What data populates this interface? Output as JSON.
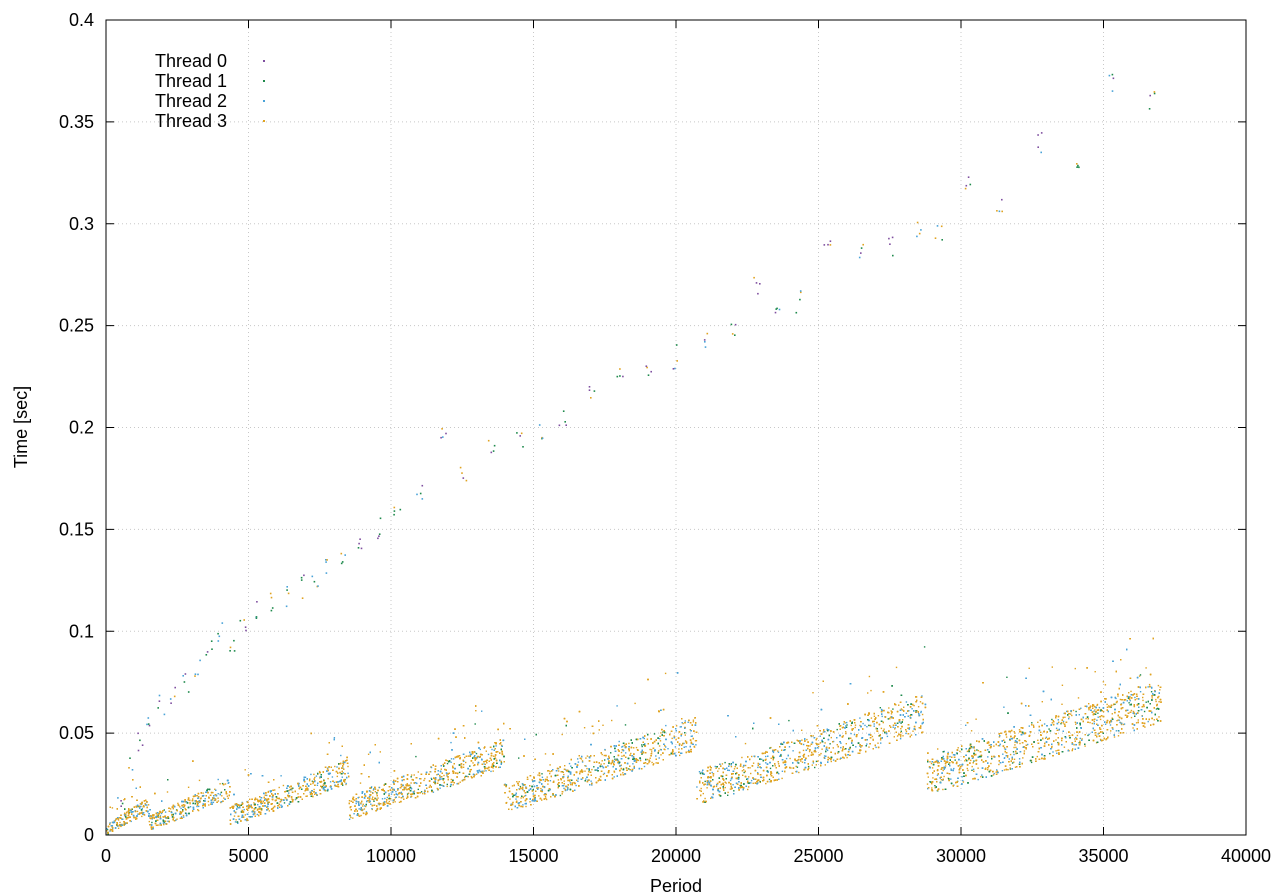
{
  "chart_data": {
    "type": "scatter",
    "title": "",
    "xlabel": "Period",
    "ylabel": "Time [sec]",
    "xlim": [
      0,
      40000
    ],
    "ylim": [
      0,
      0.4
    ],
    "xticks": [
      0,
      5000,
      10000,
      15000,
      20000,
      25000,
      30000,
      35000,
      40000
    ],
    "yticks": [
      0,
      0.05,
      0.1,
      0.15,
      0.2,
      0.25,
      0.3,
      0.35,
      0.4
    ],
    "xtick_labels": [
      "0",
      "5000",
      "10000",
      "15000",
      "20000",
      "25000",
      "30000",
      "35000",
      "40000"
    ],
    "ytick_labels": [
      "0",
      "0.05",
      "0.1",
      "0.15",
      "0.2",
      "0.25",
      "0.3",
      "0.35",
      "0.4"
    ],
    "grid": true,
    "legend_position": "top-left",
    "series": [
      {
        "name": "Thread 0",
        "color": "#7f4fa0"
      },
      {
        "name": "Thread 1",
        "color": "#1f8a4c"
      },
      {
        "name": "Thread 2",
        "color": "#4aa3d8"
      },
      {
        "name": "Thread 3",
        "color": "#e0a321"
      }
    ],
    "outliers": [
      [
        500,
        0.02
      ],
      [
        800,
        0.033
      ],
      [
        1200,
        0.046
      ],
      [
        1500,
        0.058
      ],
      [
        1900,
        0.065
      ],
      [
        2300,
        0.07
      ],
      [
        2800,
        0.075
      ],
      [
        3200,
        0.082
      ],
      [
        3600,
        0.09
      ],
      [
        4000,
        0.1
      ],
      [
        4400,
        0.095
      ],
      [
        4800,
        0.104
      ],
      [
        5300,
        0.11
      ],
      [
        5800,
        0.115
      ],
      [
        6300,
        0.118
      ],
      [
        6800,
        0.122
      ],
      [
        7300,
        0.127
      ],
      [
        7800,
        0.13
      ],
      [
        8300,
        0.135
      ],
      [
        8900,
        0.142
      ],
      [
        9500,
        0.15
      ],
      [
        10200,
        0.158
      ],
      [
        11000,
        0.168
      ],
      [
        11800,
        0.195
      ],
      [
        12500,
        0.18
      ],
      [
        13500,
        0.19
      ],
      [
        14500,
        0.192
      ],
      [
        15200,
        0.198
      ],
      [
        16000,
        0.205
      ],
      [
        17000,
        0.22
      ],
      [
        18000,
        0.225
      ],
      [
        19000,
        0.23
      ],
      [
        20000,
        0.235
      ],
      [
        21000,
        0.245
      ],
      [
        22000,
        0.25
      ],
      [
        22800,
        0.27
      ],
      [
        23500,
        0.262
      ],
      [
        24300,
        0.262
      ],
      [
        25300,
        0.29
      ],
      [
        26500,
        0.285
      ],
      [
        27500,
        0.29
      ],
      [
        28500,
        0.295
      ],
      [
        29200,
        0.295
      ],
      [
        30200,
        0.32
      ],
      [
        31300,
        0.31
      ],
      [
        32700,
        0.34
      ],
      [
        34000,
        0.33
      ],
      [
        35300,
        0.37
      ],
      [
        36700,
        0.36
      ]
    ]
  }
}
